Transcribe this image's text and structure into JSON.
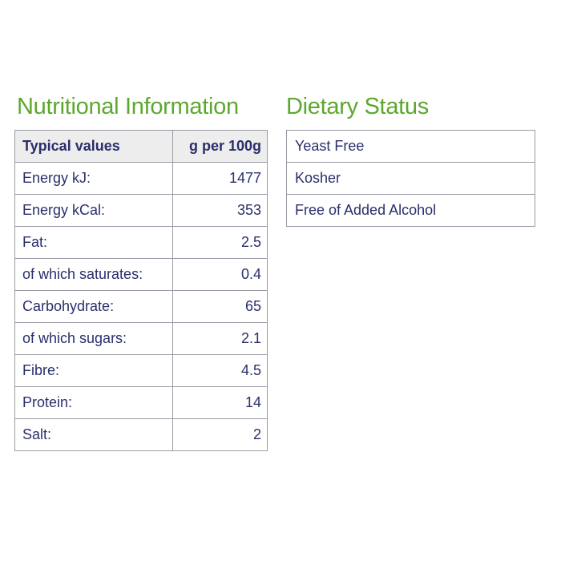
{
  "colors": {
    "heading_green": "#5ea72e",
    "navy": "#2a2f6b",
    "border": "#9a9aa5",
    "header_bg": "#ededed",
    "page_bg": "#ffffff"
  },
  "nutrition": {
    "title": "Nutritional Information",
    "header": {
      "label": "Typical values",
      "value": "g per 100g"
    },
    "rows": [
      {
        "label": "Energy kJ:",
        "value": "1477"
      },
      {
        "label": "Energy kCal:",
        "value": "353"
      },
      {
        "label": "Fat:",
        "value": "2.5"
      },
      {
        "label": "of which saturates:",
        "value": "0.4"
      },
      {
        "label": "Carbohydrate:",
        "value": "65"
      },
      {
        "label": "of which sugars:",
        "value": "2.1"
      },
      {
        "label": "Fibre:",
        "value": "4.5"
      },
      {
        "label": "Protein:",
        "value": "14"
      },
      {
        "label": "Salt:",
        "value": "2"
      }
    ]
  },
  "dietary": {
    "title": "Dietary Status",
    "items": [
      "Yeast Free",
      "Kosher",
      "Free of Added Alcohol"
    ]
  }
}
